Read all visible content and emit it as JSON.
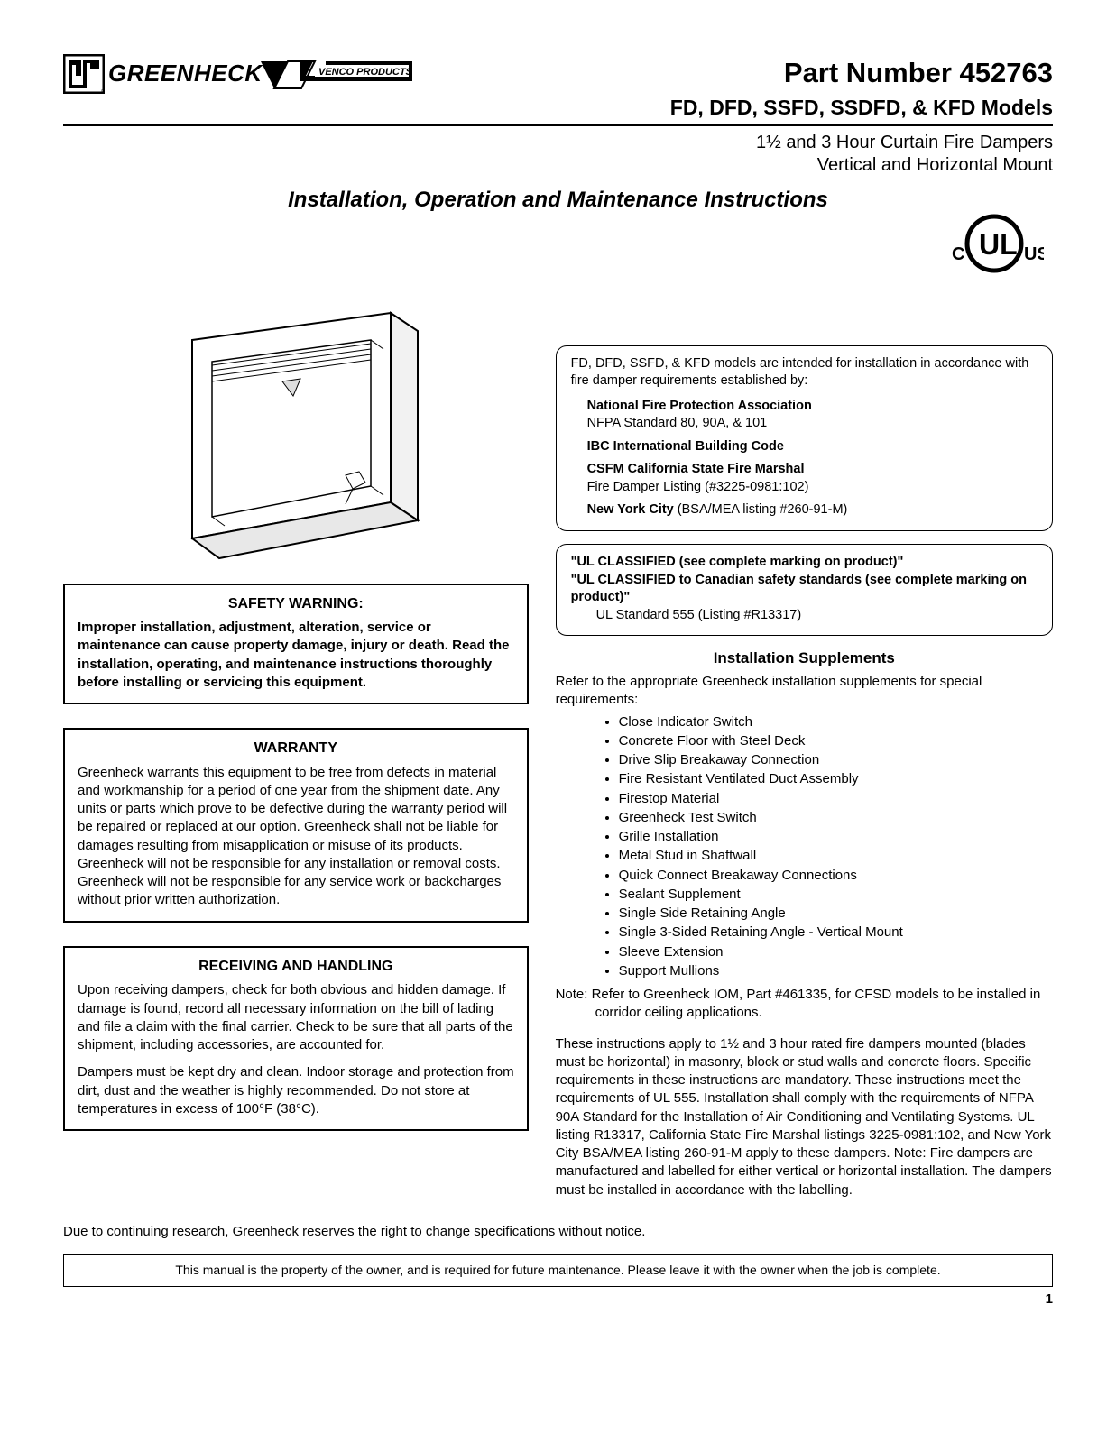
{
  "header": {
    "brand1": "GREENHECK",
    "brand2": "VENCO PRODUCTS",
    "part_label": "Part Number 452763",
    "models": "FD, DFD, SSFD, SSDFD, & KFD Models",
    "sub1": "1½ and 3 Hour Curtain Fire Dampers",
    "sub2": "Vertical and Horizontal Mount",
    "main_title": "Installation, Operation and Maintenance Instructions"
  },
  "ul_mark": {
    "c": "C",
    "ul": "UL",
    "us": "US"
  },
  "left": {
    "safety": {
      "title": "SAFETY WARNING:",
      "body": "Improper installation, adjustment, alteration, service or maintenance can cause property damage, injury or death. Read the installation, operating, and maintenance instructions thoroughly before installing or servicing this equipment."
    },
    "warranty": {
      "title": "WARRANTY",
      "body": "Greenheck warrants this equipment to be free from defects in material and workmanship for a period of one year from the shipment date. Any units or parts which prove to be defective during the warranty period will be repaired or replaced at our option. Greenheck shall not be liable for damages resulting from misapplication or misuse of its products. Greenheck will not be responsible for any installation or removal costs. Greenheck will not be responsible for any service work or backcharges without prior written authorization."
    },
    "receiving": {
      "title": "RECEIVING AND HANDLING",
      "p1": "Upon receiving dampers, check for both obvious and hidden damage. If damage is found, record all necessary information on the bill of lading and file a claim with the final carrier. Check to be sure that all parts of the shipment, including accessories, are accounted for.",
      "p2": "Dampers must be kept dry and clean. Indoor storage and protection from dirt, dust and the weather is highly recommended. Do not store at temperatures in excess of 100°F (38°C)."
    }
  },
  "right": {
    "codes": {
      "intro": "FD, DFD, SSFD, & KFD models are intended for installation in accordance with fire damper requirements established by:",
      "nfpa_b": "National Fire Protection Association",
      "nfpa_sub": "NFPA Standard 80, 90A, & 101",
      "ibc": "IBC International Building Code",
      "csfm": "CSFM California State Fire Marshal",
      "csfm_sub": "Fire Damper Listing (#3225-0981:102)",
      "nyc_b": "New York City",
      "nyc_rest": " (BSA/MEA listing #260-91-M)"
    },
    "ul_box": {
      "l1": "\"UL CLASSIFIED (see complete marking on product)\"",
      "l2": "\"UL CLASSIFIED to Canadian safety standards (see complete marking on product)\"",
      "l3": "UL Standard 555 (Listing #R13317)"
    },
    "supp": {
      "title": "Installation Supplements",
      "intro": "Refer to the appropriate Greenheck installation supplements for special requirements:",
      "items": [
        "Close Indicator Switch",
        "Concrete Floor with Steel Deck",
        "Drive Slip Breakaway Connection",
        "Fire Resistant Ventilated Duct Assembly",
        "Firestop Material",
        "Greenheck Test Switch",
        "Grille Installation",
        "Metal Stud in Shaftwall",
        "Quick Connect Breakaway Connections",
        "Sealant Supplement",
        "Single Side Retaining Angle",
        "Single 3-Sided Retaining Angle - Vertical Mount",
        "Sleeve Extension",
        "Support Mullions"
      ],
      "note": "Note:  Refer to Greenheck IOM, Part #461335, for CFSD models to be installed in corridor ceiling applications."
    },
    "body_para": "These instructions apply to 1½ and 3 hour rated fire dampers mounted (blades must be horizontal) in masonry, block or stud walls and concrete floors. Specific requirements in these instructions are mandatory. These instructions meet the requirements of UL 555. Installation shall comply with the requirements of NFPA 90A Standard for the Installation of Air Conditioning and Ventilating Systems. UL listing  R13317, California State Fire Marshal listings 3225-0981:102, and New York City BSA/MEA listing 260-91-M apply to these dampers. Note: Fire dampers are manufactured and labelled for either vertical or horizontal installation. The dampers must be installed in accordance with the labelling."
  },
  "footer": {
    "research": "Due to continuing research, Greenheck reserves the right to change specifications without notice.",
    "owner": "This manual is the property of the owner, and is required for future maintenance. Please leave it with the owner when the job is complete.",
    "page": "1"
  }
}
